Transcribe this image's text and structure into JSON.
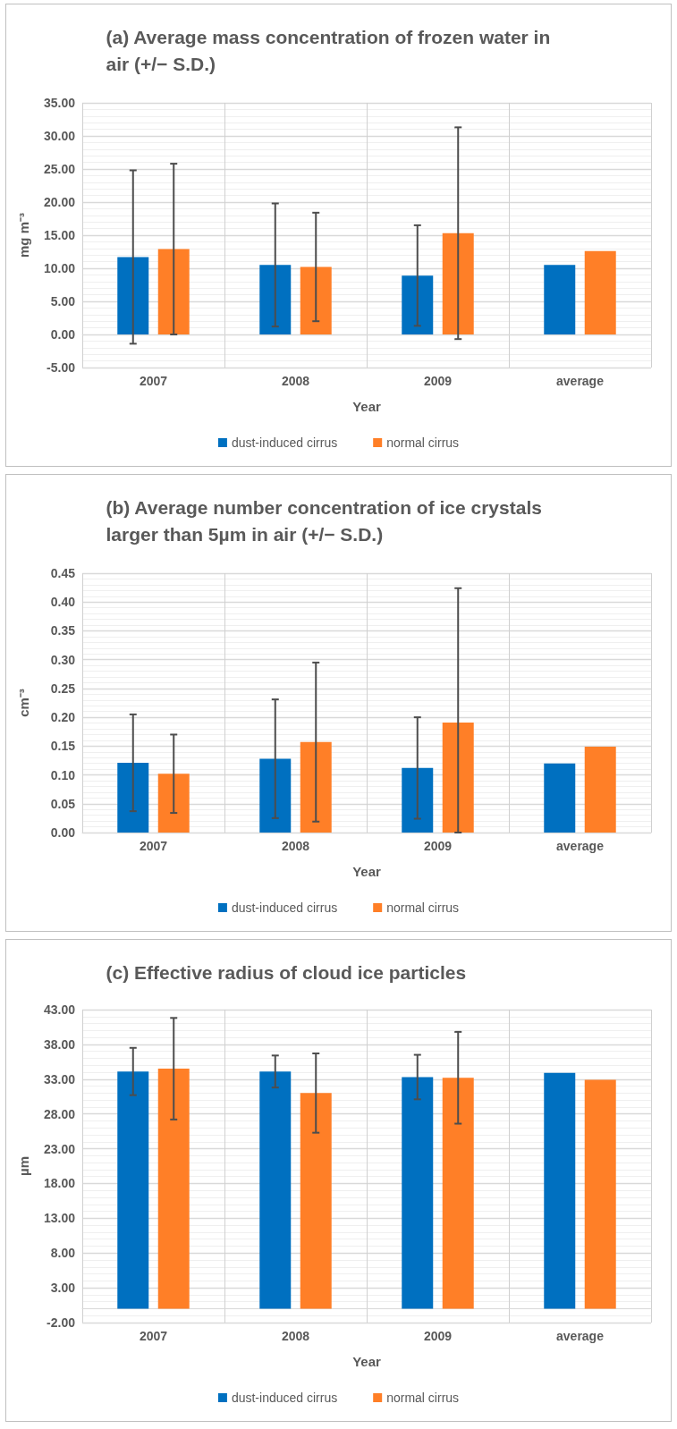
{
  "chart_data": [
    {
      "type": "bar",
      "title": "(a) Average mass concentration of frozen water in air (+/− S.D.)",
      "xlabel": "Year",
      "ylabel": "mg m⁻³",
      "categories": [
        "2007",
        "2008",
        "2009",
        "average"
      ],
      "series": [
        {
          "name": "dust-induced cirrus",
          "color": "#0070c0",
          "values": [
            11.7,
            10.5,
            8.9,
            10.5
          ],
          "errors": [
            13.1,
            9.3,
            7.6,
            null
          ]
        },
        {
          "name": "normal cirrus",
          "color": "#ff7f27",
          "values": [
            12.9,
            10.2,
            15.3,
            12.6
          ],
          "errors": [
            12.9,
            8.2,
            16.0,
            null
          ]
        }
      ],
      "ylim": [
        -5,
        35
      ],
      "yticks": [
        {
          "value": -5,
          "label": "-5.00"
        },
        {
          "value": 0,
          "label": "0.00"
        },
        {
          "value": 5,
          "label": "5.00"
        },
        {
          "value": 10,
          "label": "10.00"
        },
        {
          "value": 15,
          "label": "15.00"
        },
        {
          "value": 20,
          "label": "20.00"
        },
        {
          "value": 25,
          "label": "25.00"
        },
        {
          "value": 30,
          "label": "30.00"
        },
        {
          "value": 35,
          "label": "35.00"
        }
      ],
      "grid": true,
      "legend": "bottom"
    },
    {
      "type": "bar",
      "title": "(b) Average number concentration of ice crystals larger than 5µm in air (+/− S.D.)",
      "xlabel": "Year",
      "ylabel": "cm⁻³",
      "categories": [
        "2007",
        "2008",
        "2009",
        "average"
      ],
      "series": [
        {
          "name": "dust-induced cirrus",
          "color": "#0070c0",
          "values": [
            0.121,
            0.128,
            0.112,
            0.12
          ],
          "errors": [
            0.084,
            0.103,
            0.088,
            null
          ]
        },
        {
          "name": "normal cirrus",
          "color": "#ff7f27",
          "values": [
            0.102,
            0.157,
            0.191,
            0.149
          ],
          "errors": [
            0.068,
            0.138,
            [
              0,
              0.424
            ],
            null
          ]
        }
      ],
      "ylim": [
        0,
        0.45
      ],
      "yticks": [
        {
          "value": 0,
          "label": "0.00"
        },
        {
          "value": 0.05,
          "label": "0.05"
        },
        {
          "value": 0.1,
          "label": "0.10"
        },
        {
          "value": 0.15,
          "label": "0.15"
        },
        {
          "value": 0.2,
          "label": "0.20"
        },
        {
          "value": 0.25,
          "label": "0.25"
        },
        {
          "value": 0.3,
          "label": "0.30"
        },
        {
          "value": 0.35,
          "label": "0.35"
        },
        {
          "value": 0.4,
          "label": "0.40"
        },
        {
          "value": 0.45,
          "label": "0.45"
        }
      ],
      "grid": true,
      "legend": "bottom"
    },
    {
      "type": "bar",
      "title": "(c) Effective radius of cloud ice particles",
      "xlabel": "Year",
      "ylabel": "µm",
      "categories": [
        "2007",
        "2008",
        "2009",
        "average"
      ],
      "series": [
        {
          "name": "dust-induced cirrus",
          "color": "#0070c0",
          "values": [
            34.1,
            34.1,
            33.3,
            33.9
          ],
          "errors": [
            3.4,
            2.3,
            3.2,
            null
          ]
        },
        {
          "name": "normal cirrus",
          "color": "#ff7f27",
          "values": [
            34.5,
            31.0,
            33.2,
            32.9
          ],
          "errors": [
            7.3,
            5.7,
            6.6,
            null
          ]
        }
      ],
      "ylim": [
        -2,
        43
      ],
      "yticks": [
        {
          "value": -2,
          "label": "-2.00"
        },
        {
          "value": 3,
          "label": "3.00"
        },
        {
          "value": 8,
          "label": "8.00"
        },
        {
          "value": 13,
          "label": "13.00"
        },
        {
          "value": 18,
          "label": "18.00"
        },
        {
          "value": 23,
          "label": "23.00"
        },
        {
          "value": 28,
          "label": "28.00"
        },
        {
          "value": 33,
          "label": "33.00"
        },
        {
          "value": 38,
          "label": "38.00"
        },
        {
          "value": 43,
          "label": "43.00"
        }
      ],
      "grid": true,
      "legend": "bottom"
    }
  ]
}
